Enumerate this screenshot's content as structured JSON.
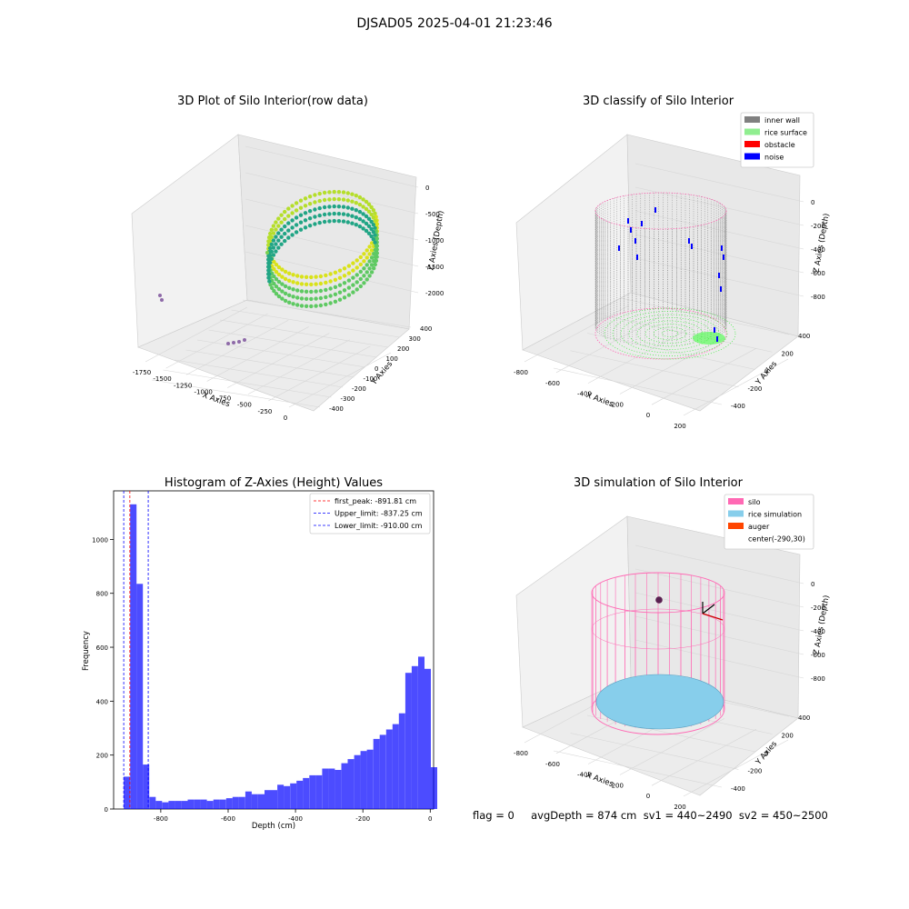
{
  "suptitle": "DJSAD05 2025-04-01 21:23:46",
  "panels": {
    "raw": {
      "title": "3D Plot of Silo Interior(row data)",
      "xlabel": "X Axies",
      "ylabel": "Y Axies",
      "zlabel": "Z Axies (Depth)",
      "xticks": [
        "-1750",
        "-1500",
        "-1250",
        "-1000",
        "-750",
        "-500",
        "-250",
        "0"
      ],
      "yticks": [
        "400",
        "300",
        "200",
        "100",
        "0",
        "-100",
        "-200",
        "-300",
        "-400"
      ],
      "zticks": [
        "0",
        "-500",
        "-1000",
        "-1500",
        "-2000"
      ]
    },
    "classify": {
      "title": "3D classify of Silo Interior",
      "xlabel": "X Axies",
      "ylabel": "Y Axies",
      "zlabel": "Z Axies (Depth)",
      "xticks": [
        "-800",
        "-600",
        "-400",
        "-200",
        "0",
        "200"
      ],
      "yticks": [
        "400",
        "200",
        "0",
        "-200",
        "-400"
      ],
      "zticks": [
        "0",
        "-200",
        "-400",
        "-600",
        "-800"
      ],
      "legend": [
        {
          "label": "inner wall",
          "color": "#808080"
        },
        {
          "label": "rice surface",
          "color": "#90ee90"
        },
        {
          "label": "obstacle",
          "color": "#ff0000"
        },
        {
          "label": "noise",
          "color": "#0000ff"
        }
      ]
    },
    "histogram": {
      "title": "Histogram of Z-Axies (Height) Values",
      "xlabel": "Depth (cm)",
      "ylabel": "Frequency",
      "xticks": [
        "-800",
        "-600",
        "-400",
        "-200",
        "0"
      ],
      "yticks": [
        "0",
        "200",
        "400",
        "600",
        "800",
        "1000"
      ],
      "legend": [
        {
          "label": "first_peak: -891.81 cm",
          "color": "#ff0000"
        },
        {
          "label": "Upper_limit: -837.25 cm",
          "color": "#0000ff"
        },
        {
          "label": "Lower_limit: -910.00 cm",
          "color": "#0000ff"
        }
      ]
    },
    "simulation": {
      "title": "3D simulation of Silo Interior",
      "xlabel": "X Axies",
      "ylabel": "Y Axies",
      "zlabel": "Z Axies (Depth)",
      "xticks": [
        "-800",
        "-600",
        "-400",
        "-200",
        "0",
        "200"
      ],
      "yticks": [
        "400",
        "200",
        "0",
        "-200",
        "-400"
      ],
      "zticks": [
        "0",
        "-200",
        "-400",
        "-600",
        "-800"
      ],
      "legend": [
        {
          "label": "silo",
          "color": "#ff69b4"
        },
        {
          "label": "rice simulation",
          "color": "#87ceeb"
        },
        {
          "label": "auger",
          "color": "#ff4500"
        },
        {
          "label": "center(-290,30)",
          "color": "none"
        }
      ]
    }
  },
  "status": "flag = 0     avgDepth = 874 cm  sv1 = 440~2490  sv2 = 450~2500",
  "chart_data": [
    {
      "type": "scatter",
      "title": "3D Plot of Silo Interior(row data)",
      "xlabel": "X Axies",
      "ylabel": "Y Axies",
      "zlabel": "Z Axies (Depth)",
      "xlim": [
        -1850,
        100
      ],
      "ylim": [
        -400,
        400
      ],
      "zlim": [
        -2300,
        0
      ]
    },
    {
      "type": "scatter",
      "title": "3D classify of Silo Interior",
      "xlabel": "X Axies",
      "ylabel": "Y Axies",
      "zlabel": "Z Axies (Depth)",
      "series": [
        {
          "name": "inner wall"
        },
        {
          "name": "rice surface"
        },
        {
          "name": "obstacle"
        },
        {
          "name": "noise"
        }
      ]
    },
    {
      "type": "bar",
      "title": "Histogram of Z-Axies (Height) Values",
      "xlabel": "Depth (cm)",
      "ylabel": "Frequency",
      "xlim": [
        -940,
        10
      ],
      "ylim": [
        0,
        1180
      ],
      "bin_width": 19,
      "bin_start": -910,
      "values": [
        120,
        1130,
        835,
        165,
        45,
        30,
        25,
        30,
        30,
        30,
        35,
        35,
        35,
        30,
        35,
        35,
        40,
        45,
        45,
        65,
        55,
        55,
        70,
        70,
        90,
        85,
        95,
        105,
        115,
        125,
        125,
        150,
        150,
        145,
        170,
        185,
        200,
        215,
        220,
        260,
        275,
        295,
        315,
        355,
        505,
        530,
        565,
        520,
        155
      ],
      "vlines": [
        {
          "label": "first_peak: -891.81 cm",
          "x": -891.81
        },
        {
          "label": "Upper_limit: -837.25 cm",
          "x": -837.25
        },
        {
          "label": "Lower_limit: -910.00 cm",
          "x": -910.0
        }
      ]
    },
    {
      "type": "scatter",
      "title": "3D simulation of Silo Interior",
      "xlabel": "X Axies",
      "ylabel": "Y Axies",
      "zlabel": "Z Axies (Depth)",
      "series": [
        {
          "name": "silo"
        },
        {
          "name": "rice simulation"
        },
        {
          "name": "auger"
        },
        {
          "name": "center(-290,30)"
        }
      ]
    }
  ]
}
